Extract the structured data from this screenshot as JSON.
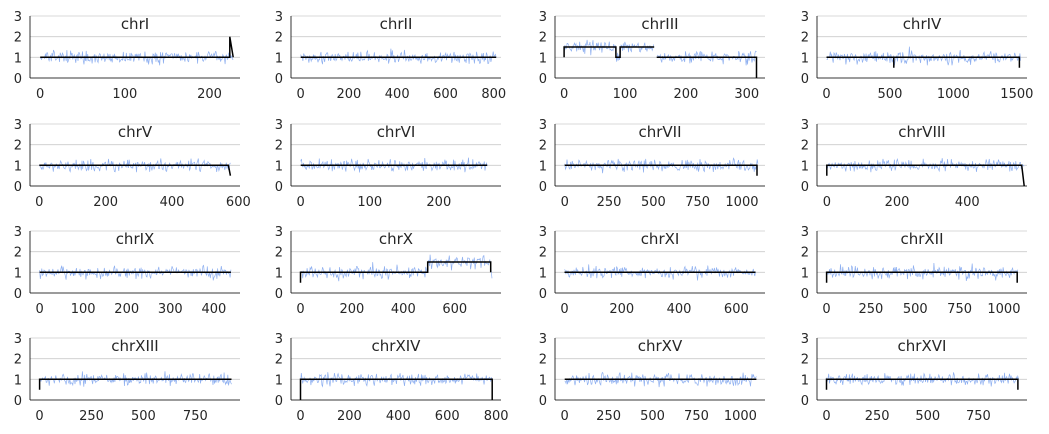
{
  "chart_data": [
    {
      "type": "line",
      "title": "chrI",
      "xlim": [
        -12,
        236
      ],
      "xticks": [
        0,
        100,
        200
      ],
      "ylim": [
        0,
        3
      ],
      "yticks": [
        0,
        1,
        2,
        3
      ],
      "x_end": 228,
      "series": [
        {
          "values": [
            [
              0,
              1.0
            ],
            [
              224,
              1.0
            ],
            [
              224,
              2.0
            ],
            [
              228,
              1.0
            ]
          ]
        }
      ]
    },
    {
      "type": "line",
      "title": "chrII",
      "xlim": [
        -40,
        830
      ],
      "xticks": [
        0,
        200,
        400,
        600,
        800
      ],
      "ylim": [
        0,
        3
      ],
      "yticks": [
        0,
        1,
        2,
        3
      ],
      "x_end": 810,
      "series": [
        {
          "values": [
            [
              0,
              1.0
            ],
            [
              810,
              1.0
            ]
          ]
        }
      ]
    },
    {
      "type": "line",
      "title": "chrIII",
      "xlim": [
        -15,
        330
      ],
      "xticks": [
        0,
        100,
        200,
        300
      ],
      "ylim": [
        0,
        3
      ],
      "yticks": [
        0,
        1,
        2,
        3
      ],
      "x_end": 316,
      "series": [
        {
          "values": [
            [
              0,
              1.0
            ],
            [
              0,
              1.5
            ],
            [
              85,
              1.5
            ],
            [
              85,
              1.0
            ],
            [
              92,
              1.0
            ],
            [
              92,
              1.5
            ],
            [
              148,
              1.5
            ],
            [
              148,
              null
            ],
            [
              152,
              1.0
            ],
            [
              316,
              1.0
            ],
            [
              316,
              0
            ]
          ]
        }
      ]
    },
    {
      "type": "line",
      "title": "chrIV",
      "xlim": [
        -75,
        1580
      ],
      "xticks": [
        0,
        500,
        1000,
        1500
      ],
      "ylim": [
        0,
        3
      ],
      "yticks": [
        0,
        1,
        2,
        3
      ],
      "x_end": 1530,
      "series": [
        {
          "values": [
            [
              0,
              1.0
            ],
            [
              530,
              1.0
            ],
            [
              530,
              0.5
            ],
            [
              530,
              1.0
            ],
            [
              1520,
              1.0
            ],
            [
              1520,
              0.5
            ]
          ]
        }
      ]
    },
    {
      "type": "line",
      "title": "chrV",
      "xlim": [
        -28,
        605
      ],
      "xticks": [
        0,
        200,
        400,
        600
      ],
      "ylim": [
        0,
        3
      ],
      "yticks": [
        0,
        1,
        2,
        3
      ],
      "x_end": 577,
      "series": [
        {
          "values": [
            [
              0,
              1.0
            ],
            [
              570,
              1.0
            ],
            [
              576,
              0.5
            ]
          ]
        }
      ]
    },
    {
      "type": "line",
      "title": "chrVI",
      "xlim": [
        -14,
        290
      ],
      "xticks": [
        0,
        100,
        200
      ],
      "ylim": [
        0,
        3
      ],
      "yticks": [
        0,
        1,
        2,
        3
      ],
      "x_end": 270,
      "series": [
        {
          "values": [
            [
              0,
              1.0
            ],
            [
              270,
              1.0
            ]
          ]
        }
      ]
    },
    {
      "type": "line",
      "title": "chrVII",
      "xlim": [
        -55,
        1130
      ],
      "xticks": [
        0,
        250,
        500,
        750,
        1000
      ],
      "ylim": [
        0,
        3
      ],
      "yticks": [
        0,
        1,
        2,
        3
      ],
      "x_end": 1090,
      "series": [
        {
          "values": [
            [
              0,
              1.0
            ],
            [
              1085,
              1.0
            ],
            [
              1085,
              0.5
            ]
          ]
        }
      ]
    },
    {
      "type": "line",
      "title": "chrVIII",
      "xlim": [
        -28,
        570
      ],
      "xticks": [
        0,
        200,
        400
      ],
      "ylim": [
        0,
        3
      ],
      "yticks": [
        0,
        1,
        2,
        3
      ],
      "x_end": 562,
      "series": [
        {
          "values": [
            [
              0,
              0.5
            ],
            [
              0,
              1.0
            ],
            [
              555,
              1.0
            ],
            [
              562,
              0
            ]
          ]
        }
      ]
    },
    {
      "type": "line",
      "title": "chrIX",
      "xlim": [
        -22,
        460
      ],
      "xticks": [
        0,
        100,
        200,
        300,
        400
      ],
      "ylim": [
        0,
        3
      ],
      "yticks": [
        0,
        1,
        2,
        3
      ],
      "x_end": 439,
      "series": [
        {
          "values": [
            [
              0,
              1.0
            ],
            [
              439,
              1.0
            ]
          ]
        }
      ]
    },
    {
      "type": "line",
      "title": "chrX",
      "xlim": [
        -37,
        780
      ],
      "xticks": [
        0,
        200,
        400,
        600
      ],
      "ylim": [
        0,
        3
      ],
      "yticks": [
        0,
        1,
        2,
        3
      ],
      "x_end": 745,
      "series": [
        {
          "values": [
            [
              0,
              0.5
            ],
            [
              0,
              1.0
            ],
            [
              495,
              1.0
            ],
            [
              495,
              1.5
            ],
            [
              740,
              1.5
            ],
            [
              740,
              1.0
            ]
          ]
        }
      ]
    },
    {
      "type": "line",
      "title": "chrXI",
      "xlim": [
        -33,
        700
      ],
      "xticks": [
        0,
        200,
        400,
        600
      ],
      "ylim": [
        0,
        3
      ],
      "yticks": [
        0,
        1,
        2,
        3
      ],
      "x_end": 667,
      "series": [
        {
          "values": [
            [
              0,
              1.0
            ],
            [
              667,
              1.0
            ]
          ]
        }
      ]
    },
    {
      "type": "line",
      "title": "chrXII",
      "xlim": [
        -54,
        1130
      ],
      "xticks": [
        0,
        250,
        500,
        750,
        1000
      ],
      "ylim": [
        0,
        3
      ],
      "yticks": [
        0,
        1,
        2,
        3
      ],
      "x_end": 1078,
      "series": [
        {
          "values": [
            [
              0,
              0.5
            ],
            [
              0,
              1.0
            ],
            [
              1075,
              1.0
            ],
            [
              1075,
              0.5
            ]
          ]
        }
      ]
    },
    {
      "type": "line",
      "title": "chrXIII",
      "xlim": [
        -46,
        965
      ],
      "xticks": [
        0,
        250,
        500,
        750
      ],
      "ylim": [
        0,
        3
      ],
      "yticks": [
        0,
        1,
        2,
        3
      ],
      "x_end": 924,
      "series": [
        {
          "values": [
            [
              0,
              0.5
            ],
            [
              0,
              1.0
            ],
            [
              924,
              1.0
            ]
          ]
        }
      ]
    },
    {
      "type": "line",
      "title": "chrXIV",
      "xlim": [
        -39,
        820
      ],
      "xticks": [
        0,
        200,
        400,
        600,
        800
      ],
      "ylim": [
        0,
        3
      ],
      "yticks": [
        0,
        1,
        2,
        3
      ],
      "x_end": 784,
      "series": [
        {
          "values": [
            [
              0,
              0
            ],
            [
              0,
              1.0
            ],
            [
              784,
              1.0
            ],
            [
              784,
              0
            ]
          ]
        }
      ]
    },
    {
      "type": "line",
      "title": "chrXV",
      "xlim": [
        -55,
        1140
      ],
      "xticks": [
        0,
        250,
        500,
        750,
        1000
      ],
      "ylim": [
        0,
        3
      ],
      "yticks": [
        0,
        1,
        2,
        3
      ],
      "x_end": 1091,
      "series": [
        {
          "values": [
            [
              0,
              1.0
            ],
            [
              1091,
              1.0
            ]
          ]
        }
      ]
    },
    {
      "type": "line",
      "title": "chrXVI",
      "xlim": [
        -47,
        990
      ],
      "xticks": [
        0,
        250,
        500,
        750
      ],
      "ylim": [
        0,
        3
      ],
      "yticks": [
        0,
        1,
        2,
        3
      ],
      "x_end": 948,
      "series": [
        {
          "values": [
            [
              0,
              0.5
            ],
            [
              0,
              1.0
            ],
            [
              945,
              1.0
            ],
            [
              945,
              0.5
            ]
          ]
        }
      ]
    }
  ],
  "colors": {
    "raw_trace": "#8fb0f0",
    "segment_line": "#000000",
    "grid": "#cccccc",
    "axis": "#000000",
    "text": "#262626"
  }
}
